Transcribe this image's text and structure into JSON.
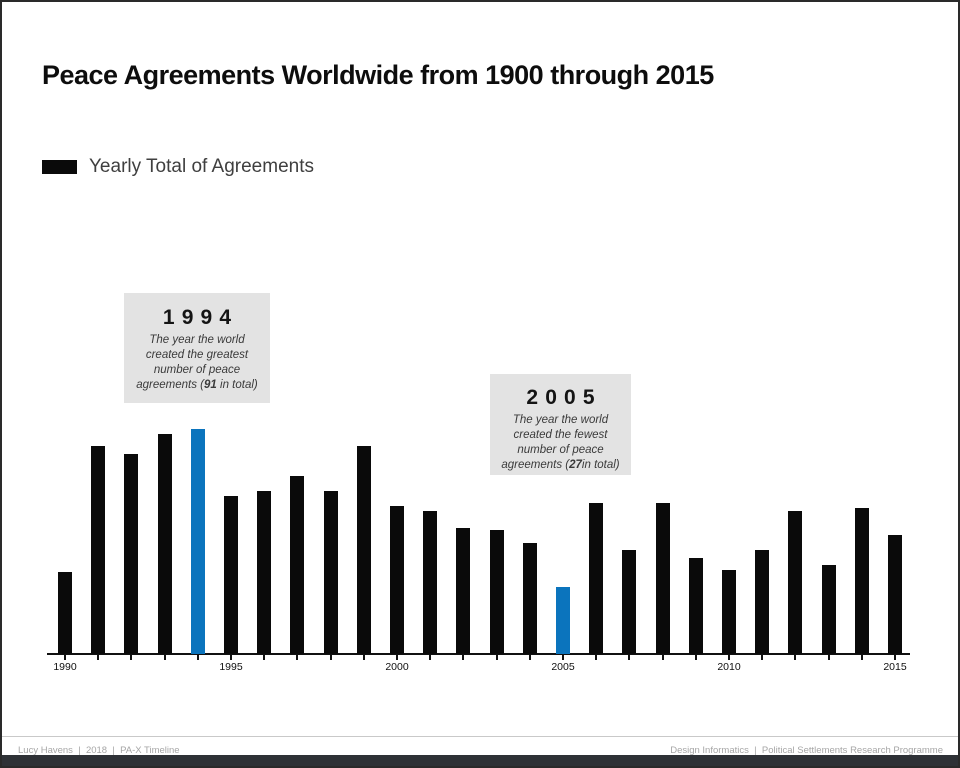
{
  "page": {
    "title": "Peace Agreements Worldwide from 1900 through 2015"
  },
  "legend": {
    "label": "Yearly Total of Agreements",
    "swatch_color": "#0a0a0a"
  },
  "chart_data": {
    "type": "bar",
    "title": "Peace Agreements Worldwide from 1900 through 2015",
    "series_label": "Yearly Total of Agreements",
    "x": [
      1990,
      1991,
      1992,
      1993,
      1994,
      1995,
      1996,
      1997,
      1998,
      1999,
      2000,
      2001,
      2002,
      2003,
      2004,
      2005,
      2006,
      2007,
      2008,
      2009,
      2010,
      2011,
      2012,
      2013,
      2014,
      2015
    ],
    "values": [
      33,
      84,
      81,
      89,
      91,
      64,
      66,
      72,
      66,
      84,
      60,
      58,
      51,
      50,
      45,
      27,
      61,
      42,
      61,
      39,
      34,
      42,
      58,
      36,
      59,
      48
    ],
    "xticks": [
      1990,
      1995,
      2000,
      2005,
      2010,
      2015
    ],
    "ylim": [
      0,
      95
    ],
    "xlabel": "",
    "ylabel": "",
    "grid": false,
    "legend_position": "top-left",
    "bar_color": "#0a0a0a",
    "highlight_color": "#0b74bd",
    "highlights": {
      "1994": "#0b74bd",
      "2005": "#0b74bd"
    },
    "max_year": {
      "year": 1994,
      "total": 91
    },
    "min_year": {
      "year": 2005,
      "total": 27
    }
  },
  "annotations": [
    {
      "year": "1994",
      "line1": "The year the world",
      "line2": "created the greatest",
      "line3": "number of peace",
      "line4_pre": "agreements (",
      "line4_bold": "91",
      "line4_post": " in total)"
    },
    {
      "year": "2005",
      "line1": "The year the world",
      "line2": "created the fewest",
      "line3": "number of peace",
      "line4_pre": "agreements (",
      "line4_bold": "27",
      "line4_post": "in total)"
    }
  ],
  "footer": {
    "left": "Lucy Havens  |  2018  |  PA-X Timeline",
    "right": "Design Informatics  |  Political Settlements Research Programme"
  },
  "colors": {
    "annotation_bg": "#e3e3e3",
    "footer_text": "#a6a6a6",
    "bottom_bar": "#2e3136",
    "axis": "#111111"
  }
}
